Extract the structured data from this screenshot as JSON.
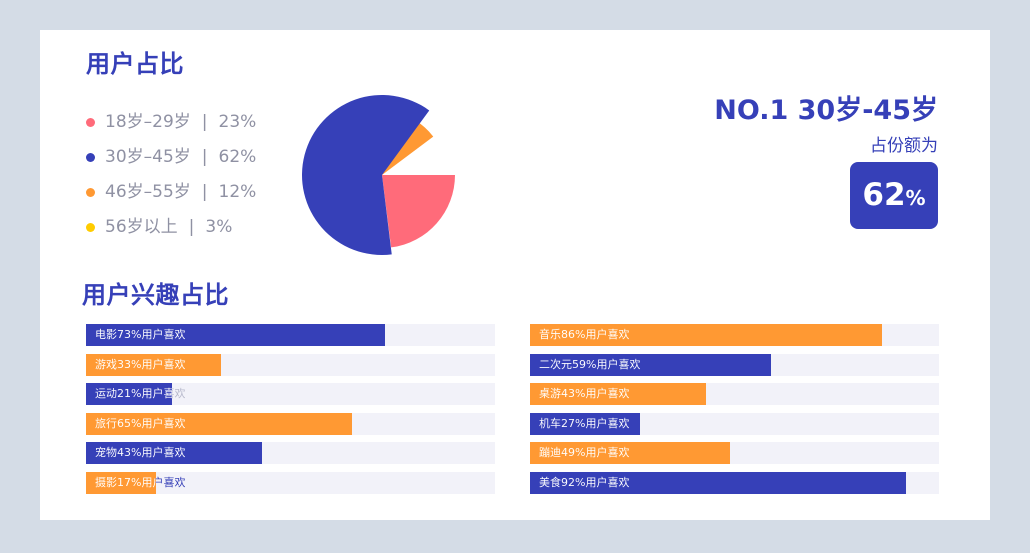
{
  "section1_title": "用户占比",
  "section2_title": "用户兴趣占比",
  "highlight": {
    "rank_label": "NO.1 30岁-45岁",
    "share_label": "占份额为",
    "value": "62",
    "unit": "%"
  },
  "colors": {
    "blue": "#3640b8",
    "orange": "#ff9933",
    "pink": "#ff6b7a",
    "yellow": "#ffcc00",
    "track": "#f2f2f9"
  },
  "chart_data": [
    {
      "type": "pie",
      "legend_placement": "left",
      "categories": [
        "18岁–29岁",
        "30岁–45岁",
        "46岁–55岁",
        "56岁以上"
      ],
      "values": [
        23,
        62,
        12,
        3
      ],
      "value_labels": [
        "23%",
        "62%",
        "12%",
        "3%"
      ],
      "colors": [
        "#ff6b7a",
        "#3640b8",
        "#ff9933",
        "#ffcc00"
      ]
    },
    {
      "type": "bar",
      "orientation": "horizontal",
      "xlim": [
        0,
        100
      ],
      "categories": [
        "电影",
        "游戏",
        "运动",
        "旅行",
        "宠物",
        "摄影",
        "音乐",
        "二次元",
        "桌游",
        "机车",
        "蹦迪",
        "美食"
      ],
      "values": [
        73,
        33,
        21,
        65,
        43,
        17,
        86,
        59,
        43,
        27,
        49,
        92
      ],
      "labels": [
        "电影73%用户喜欢",
        "游戏33%用户喜欢",
        "运动21%用户喜欢",
        "旅行65%用户喜欢",
        "宠物43%用户喜欢",
        "摄影17%用户喜欢",
        "音乐86%用户喜欢",
        "二次元59%用户喜欢",
        "桌游43%用户喜欢",
        "机车27%用户喜欢",
        "蹦迪49%用户喜欢",
        "美食92%用户喜欢"
      ],
      "colors": [
        "#3640b8",
        "#ff9933",
        "#3640b8",
        "#ff9933",
        "#3640b8",
        "#ff9933",
        "#ff9933",
        "#3640b8",
        "#ff9933",
        "#3640b8",
        "#ff9933",
        "#3640b8"
      ]
    }
  ]
}
